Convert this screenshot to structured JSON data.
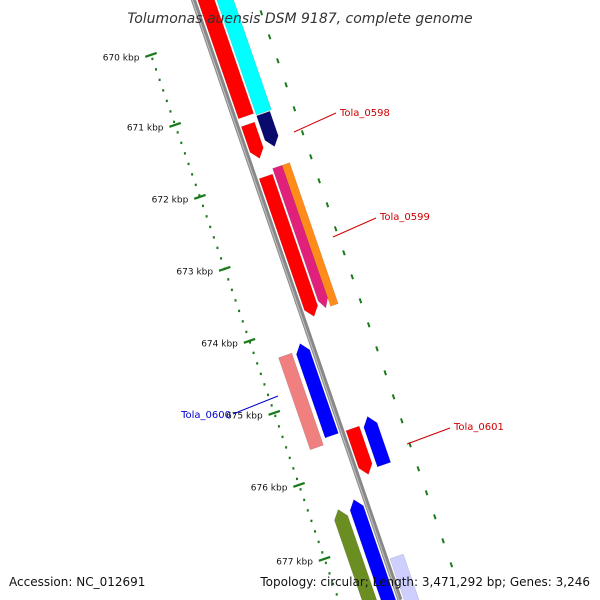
{
  "title": "Tolumonas auensis DSM 9187, complete genome",
  "footer": {
    "accession": "Accession: NC_012691",
    "summary": "Topology: circular; Length: 3,471,292 bp; Genes: 3,246"
  },
  "scale": {
    "ticks": [
      "670 kbp",
      "671 kbp",
      "672 kbp",
      "673 kbp",
      "674 kbp",
      "675 kbp",
      "676 kbp",
      "677 kbp"
    ]
  },
  "colors": {
    "backbone": "#888888",
    "tick": "#1a7a1a",
    "forward_cds": "#ff0000",
    "forward_extra": "#00ffff",
    "reverse_cds": "#0000ff",
    "dark_gene": "#0a0a6e",
    "magenta_gene": "#e0207a",
    "orange_gene": "#ff8c1a",
    "pink_gene": "#f08080",
    "olive_gene": "#6b8e23",
    "label_red": "#cc0000",
    "label_blue": "#0000cc"
  },
  "genes": [
    {
      "name": "Tola_0598",
      "label_color": "#cc0000"
    },
    {
      "name": "Tola_0599",
      "label_color": "#cc0000"
    },
    {
      "name": "Tola_0600",
      "label_color": "#0000cc"
    },
    {
      "name": "Tola_0601",
      "label_color": "#cc0000"
    }
  ]
}
